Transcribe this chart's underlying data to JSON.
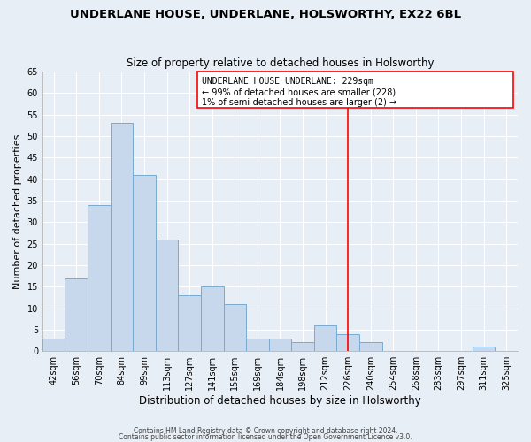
{
  "title": "UNDERLANE HOUSE, UNDERLANE, HOLSWORTHY, EX22 6BL",
  "subtitle": "Size of property relative to detached houses in Holsworthy",
  "xlabel": "Distribution of detached houses by size in Holsworthy",
  "ylabel": "Number of detached properties",
  "bar_color": "#c8d8ec",
  "bar_edge_color": "#7aaad0",
  "bin_labels": [
    "42sqm",
    "56sqm",
    "70sqm",
    "84sqm",
    "99sqm",
    "113sqm",
    "127sqm",
    "141sqm",
    "155sqm",
    "169sqm",
    "184sqm",
    "198sqm",
    "212sqm",
    "226sqm",
    "240sqm",
    "254sqm",
    "268sqm",
    "283sqm",
    "297sqm",
    "311sqm",
    "325sqm"
  ],
  "bar_heights": [
    3,
    17,
    34,
    53,
    41,
    26,
    13,
    15,
    11,
    3,
    3,
    2,
    6,
    4,
    2,
    0,
    0,
    0,
    0,
    1,
    0
  ],
  "ylim": [
    0,
    65
  ],
  "yticks": [
    0,
    5,
    10,
    15,
    20,
    25,
    30,
    35,
    40,
    45,
    50,
    55,
    60,
    65
  ],
  "vline_x": 13.5,
  "annotation_title": "UNDERLANE HOUSE UNDERLANE: 229sqm",
  "annotation_line1": "← 99% of detached houses are smaller (228)",
  "annotation_line2": "1% of semi-detached houses are larger (2) →",
  "footer1": "Contains HM Land Registry data © Crown copyright and database right 2024.",
  "footer2": "Contains public sector information licensed under the Open Government Licence v3.0.",
  "background_color": "#e8eef5",
  "grid_color": "#ffffff"
}
